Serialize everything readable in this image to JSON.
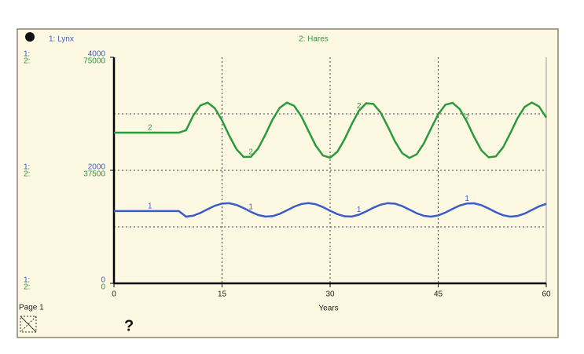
{
  "chart_data": {
    "type": "line",
    "x_label": "Years",
    "page_label": "Page 1",
    "help_label": "?",
    "axis_series_tags": [
      "1:",
      "2:"
    ],
    "curve_tags": [
      "1",
      "2"
    ],
    "x": [
      0,
      1,
      2,
      3,
      4,
      5,
      6,
      7,
      8,
      9,
      10,
      11,
      12,
      13,
      14,
      15,
      16,
      17,
      18,
      19,
      20,
      21,
      22,
      23,
      24,
      25,
      26,
      27,
      28,
      29,
      30,
      31,
      32,
      33,
      34,
      35,
      36,
      37,
      38,
      39,
      40,
      41,
      42,
      43,
      44,
      45,
      46,
      47,
      48,
      49,
      50,
      51,
      52,
      53,
      54,
      55,
      56,
      57,
      58,
      59,
      60
    ],
    "xlim": [
      0,
      60
    ],
    "xticks": [
      0,
      15,
      30,
      45,
      60
    ],
    "ylim": [
      0,
      4000
    ],
    "yticks": [
      0,
      2000,
      4000
    ],
    "y2lim": [
      0,
      75000
    ],
    "y2ticks": [
      0,
      37500,
      75000
    ],
    "grid": true,
    "series": [
      {
        "name": "1: Lynx",
        "color": "#3a5cc9",
        "axis": "y",
        "values": [
          1280,
          1280,
          1280,
          1280,
          1280,
          1280,
          1280,
          1280,
          1280,
          1280,
          1180,
          1198,
          1247,
          1312,
          1373,
          1412,
          1418,
          1388,
          1331,
          1266,
          1210,
          1182,
          1189,
          1230,
          1292,
          1356,
          1404,
          1420,
          1400,
          1350,
          1285,
          1225,
          1187,
          1183,
          1215,
          1272,
          1338,
          1392,
          1419,
          1410,
          1368,
          1305,
          1241,
          1195,
          1180,
          1202,
          1253,
          1318,
          1378,
          1414,
          1416,
          1383,
          1325,
          1259,
          1206,
          1181,
          1192,
          1235,
          1298,
          1362,
          1407
        ]
      },
      {
        "name": "2: Hares",
        "color": "#2b9a3c",
        "axis": "y2",
        "values": [
          50000,
          50000,
          50000,
          50000,
          50000,
          50000,
          50000,
          50000,
          50000,
          50000,
          50800,
          55660,
          59050,
          59950,
          58100,
          54060,
          49020,
          44520,
          41920,
          41980,
          44710,
          49270,
          54290,
          58250,
          59980,
          58930,
          55450,
          50540,
          45710,
          42430,
          41670,
          43650,
          47780,
          52820,
          57260,
          59740,
          59530,
          56690,
          52080,
          47080,
          43200,
          41610,
          42790,
          46380,
          51310,
          56080,
          59260,
          59890,
          57790,
          53570,
          48530,
          44130,
          41800,
          42120,
          45110,
          49770,
          54750,
          58540,
          60000,
          58680,
          54990
        ]
      }
    ]
  }
}
